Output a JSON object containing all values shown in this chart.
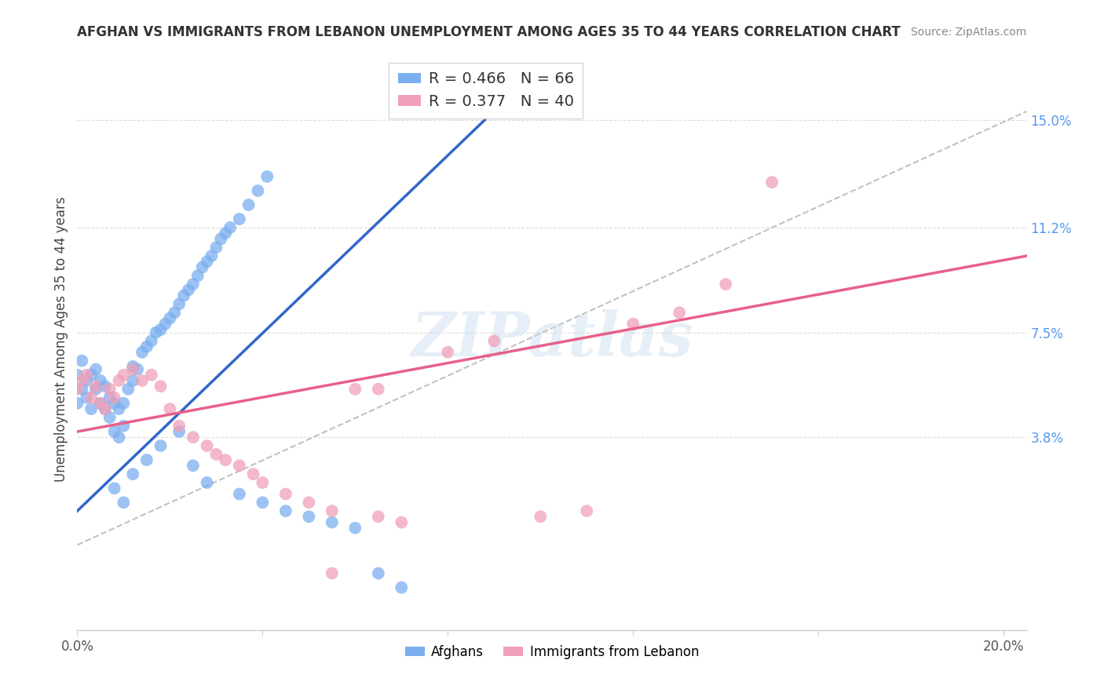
{
  "title": "AFGHAN VS IMMIGRANTS FROM LEBANON UNEMPLOYMENT AMONG AGES 35 TO 44 YEARS CORRELATION CHART",
  "source": "Source: ZipAtlas.com",
  "ylabel": "Unemployment Among Ages 35 to 44 years",
  "xlim": [
    0.0,
    0.205
  ],
  "ylim": [
    -0.03,
    0.175
  ],
  "x_ticks": [
    0.0,
    0.04,
    0.08,
    0.12,
    0.16,
    0.2
  ],
  "x_tick_labels": [
    "0.0%",
    "",
    "",
    "",
    "",
    "20.0%"
  ],
  "y_tick_labels_right": [
    "15.0%",
    "11.2%",
    "7.5%",
    "3.8%"
  ],
  "y_tick_vals_right": [
    0.15,
    0.112,
    0.075,
    0.038
  ],
  "blue_R": 0.466,
  "blue_N": 66,
  "pink_R": 0.377,
  "pink_N": 40,
  "blue_color": "#7BAFF0",
  "pink_color": "#F0A0B8",
  "blue_line_color": "#3366CC",
  "pink_line_color": "#E8608A",
  "dashed_line_color": "#BBBBBB",
  "watermark": "ZIPatlas",
  "blue_line_x": [
    0.0,
    0.088
  ],
  "blue_line_y": [
    0.012,
    0.15
  ],
  "pink_line_x": [
    0.0,
    0.205
  ],
  "pink_line_y": [
    0.04,
    0.102
  ],
  "dash_line_x": [
    0.0,
    0.205
  ],
  "dash_line_y": [
    0.0,
    0.153
  ],
  "blue_scatter_x": [
    0.0,
    0.0,
    0.001,
    0.001,
    0.002,
    0.002,
    0.003,
    0.003,
    0.004,
    0.004,
    0.005,
    0.005,
    0.006,
    0.006,
    0.007,
    0.007,
    0.008,
    0.008,
    0.009,
    0.009,
    0.01,
    0.01,
    0.011,
    0.012,
    0.012,
    0.013,
    0.014,
    0.015,
    0.016,
    0.017,
    0.018,
    0.019,
    0.02,
    0.021,
    0.022,
    0.023,
    0.024,
    0.025,
    0.026,
    0.027,
    0.028,
    0.029,
    0.03,
    0.031,
    0.032,
    0.033,
    0.035,
    0.037,
    0.039,
    0.041,
    0.022,
    0.018,
    0.015,
    0.012,
    0.025,
    0.028,
    0.035,
    0.04,
    0.045,
    0.05,
    0.055,
    0.06,
    0.008,
    0.01,
    0.065,
    0.07
  ],
  "blue_scatter_y": [
    0.05,
    0.06,
    0.055,
    0.065,
    0.052,
    0.058,
    0.048,
    0.06,
    0.055,
    0.062,
    0.05,
    0.058,
    0.048,
    0.056,
    0.045,
    0.052,
    0.04,
    0.05,
    0.038,
    0.048,
    0.042,
    0.05,
    0.055,
    0.058,
    0.063,
    0.062,
    0.068,
    0.07,
    0.072,
    0.075,
    0.076,
    0.078,
    0.08,
    0.082,
    0.085,
    0.088,
    0.09,
    0.092,
    0.095,
    0.098,
    0.1,
    0.102,
    0.105,
    0.108,
    0.11,
    0.112,
    0.115,
    0.12,
    0.125,
    0.13,
    0.04,
    0.035,
    0.03,
    0.025,
    0.028,
    0.022,
    0.018,
    0.015,
    0.012,
    0.01,
    0.008,
    0.006,
    0.02,
    0.015,
    -0.01,
    -0.015
  ],
  "pink_scatter_x": [
    0.0,
    0.001,
    0.002,
    0.003,
    0.004,
    0.005,
    0.006,
    0.007,
    0.008,
    0.009,
    0.01,
    0.012,
    0.014,
    0.016,
    0.018,
    0.02,
    0.022,
    0.025,
    0.028,
    0.03,
    0.032,
    0.035,
    0.038,
    0.04,
    0.045,
    0.05,
    0.055,
    0.06,
    0.065,
    0.07,
    0.08,
    0.09,
    0.1,
    0.11,
    0.12,
    0.13,
    0.14,
    0.15,
    0.065,
    0.055
  ],
  "pink_scatter_y": [
    0.055,
    0.058,
    0.06,
    0.052,
    0.056,
    0.05,
    0.048,
    0.055,
    0.052,
    0.058,
    0.06,
    0.062,
    0.058,
    0.06,
    0.056,
    0.048,
    0.042,
    0.038,
    0.035,
    0.032,
    0.03,
    0.028,
    0.025,
    0.022,
    0.018,
    0.015,
    0.012,
    0.055,
    0.01,
    0.008,
    0.068,
    0.072,
    0.01,
    0.012,
    0.078,
    0.082,
    0.092,
    0.128,
    0.055,
    -0.01
  ]
}
